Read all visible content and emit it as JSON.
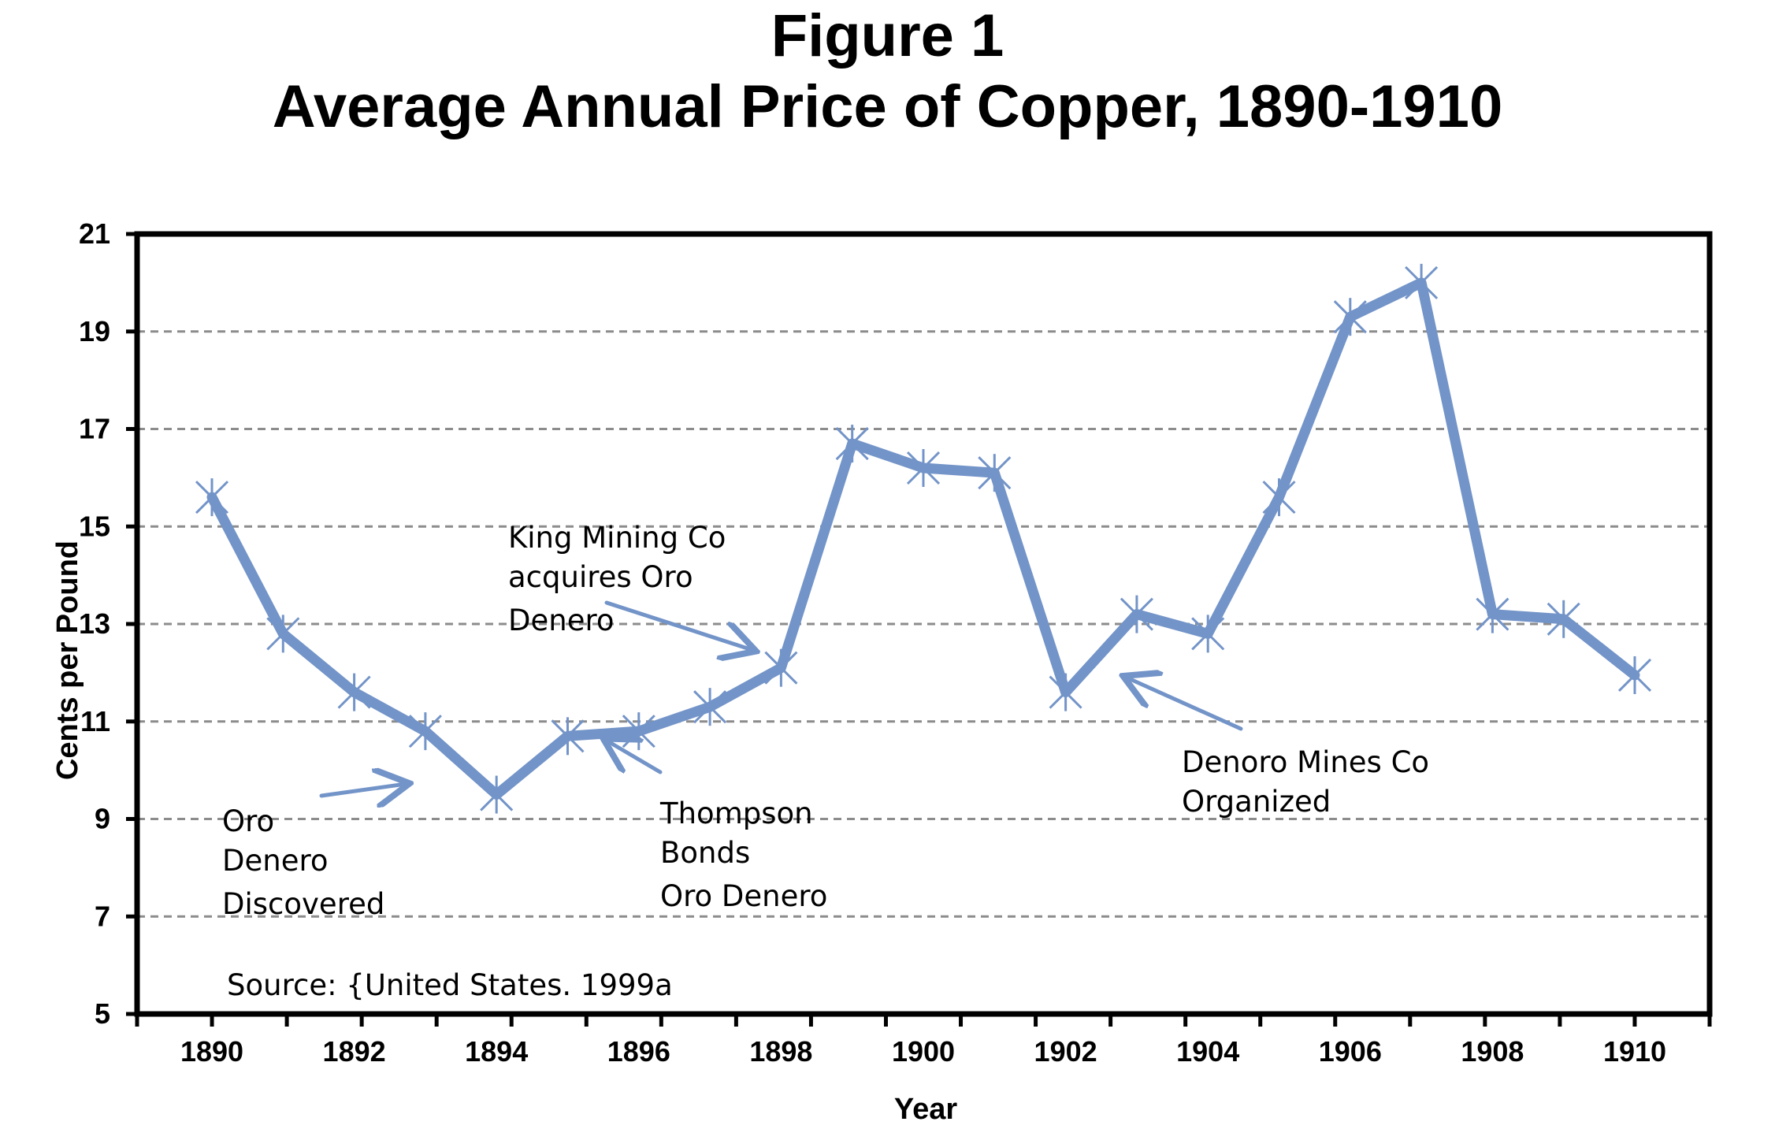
{
  "chart_data": {
    "type": "line",
    "title": "Figure 1",
    "subtitle": "Average Annual Price of Copper, 1890-1910",
    "xlabel": "Year",
    "ylabel": "Cents per Pound",
    "xlim": [
      1890,
      1910
    ],
    "ylim": [
      5,
      21
    ],
    "y_ticks": [
      5,
      7,
      9,
      11,
      13,
      15,
      17,
      19,
      21
    ],
    "x_tick_labels": [
      "1890",
      "1892",
      "1894",
      "1896",
      "1898",
      "1900",
      "1902",
      "1904",
      "1906",
      "1908",
      "1910"
    ],
    "grid": "horizontal dashed",
    "legend": "none",
    "line_color": "#7394c8",
    "series": [
      {
        "x": [
          1890,
          1891,
          1892,
          1893,
          1894,
          1895,
          1896,
          1897,
          1898,
          1899,
          1900,
          1901,
          1902,
          1903,
          1904,
          1905,
          1906,
          1907,
          1908,
          1909,
          1910
        ],
        "values": [
          15.6,
          12.8,
          11.6,
          10.8,
          9.5,
          10.7,
          10.8,
          11.3,
          12.1,
          16.7,
          16.2,
          16.1,
          11.6,
          13.2,
          12.8,
          15.6,
          19.3,
          20.0,
          13.2,
          13.1,
          11.95
        ]
      }
    ],
    "annotations": [
      {
        "lines": [
          "Oro",
          "Denero",
          "Discovered"
        ]
      },
      {
        "lines": [
          "Thompson",
          "Bonds",
          "Oro Denero"
        ]
      },
      {
        "lines": [
          "King Mining Co",
          "acquires Oro",
          "Denero"
        ]
      },
      {
        "lines": [
          "Denoro Mines Co",
          "Organized"
        ]
      }
    ],
    "source": "Source:  {United States. 1999a"
  }
}
